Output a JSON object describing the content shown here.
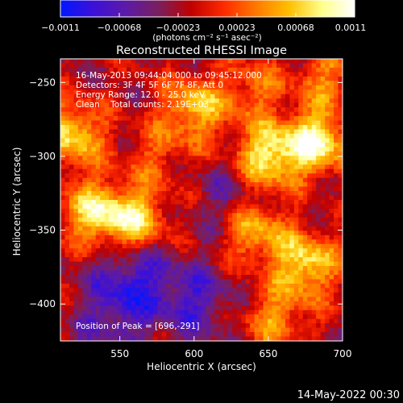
{
  "chart_data": {
    "type": "heatmap",
    "title": "Reconstructed RHESSI Image",
    "xlabel": "Heliocentric X (arcsec)",
    "ylabel": "Heliocentric Y (arcsec)",
    "xlim": [
      510,
      700
    ],
    "ylim": [
      -425,
      -234
    ],
    "x_ticks": [
      550,
      600,
      650,
      700
    ],
    "y_ticks": [
      -250,
      -300,
      -350,
      -400
    ],
    "x_tick_labels": [
      "550",
      "600",
      "650",
      "700"
    ],
    "y_tick_labels": [
      "−250",
      "−300",
      "−350",
      "−400"
    ],
    "colorbar": {
      "range": [
        -0.0011,
        0.0011
      ],
      "tick_labels": [
        "−0.0011",
        "−0.00068",
        "−0.00023",
        "0.00023",
        "0.00068",
        "0.0011"
      ],
      "units_label": "(photons cm⁻² s⁻¹ asec⁻²)",
      "colormap": [
        "#0018ff",
        "#3c10d8",
        "#5c1aa8",
        "#7a1f5e",
        "#c00000",
        "#ff2a00",
        "#ff7a00",
        "#ffc000",
        "#ffff8c",
        "#ffffff"
      ]
    },
    "annotations": {
      "time_range": "16-May-2013 09:44:04.000 to 09:45:12.000",
      "detectors": "Detectors: 3F 4F 5F 6F 7F 8F, Att 0",
      "energy_range": "Energy Range: 12.0 - 25.0 keV",
      "method_counts": "Clean    Total counts: 2.19E+03",
      "peak": "Position of Peak = [696,-291]"
    },
    "peak": {
      "x": 696,
      "y": -291
    },
    "hotspots": [
      {
        "x": 683,
        "y": -290,
        "amp": 1.0
      },
      {
        "x": 650,
        "y": -300,
        "amp": 0.95
      },
      {
        "x": 600,
        "y": -268,
        "amp": 0.75
      },
      {
        "x": 518,
        "y": -285,
        "amp": 0.85
      },
      {
        "x": 532,
        "y": -338,
        "amp": 0.8
      },
      {
        "x": 560,
        "y": -343,
        "amp": 0.85
      },
      {
        "x": 675,
        "y": -373,
        "amp": 0.9
      },
      {
        "x": 640,
        "y": -350,
        "amp": 0.75
      },
      {
        "x": 690,
        "y": -245,
        "amp": 0.5
      },
      {
        "x": 655,
        "y": -410,
        "amp": 0.55
      },
      {
        "x": 575,
        "y": -300,
        "amp": 0.35
      },
      {
        "x": 640,
        "y": -255,
        "amp": 0.45
      }
    ],
    "coldspots": [
      {
        "x": 560,
        "y": -382,
        "amp": 0.9
      },
      {
        "x": 600,
        "y": -398,
        "amp": 0.8
      },
      {
        "x": 625,
        "y": -330,
        "amp": 0.55
      },
      {
        "x": 545,
        "y": -410,
        "amp": 0.6
      }
    ]
  },
  "footer": {
    "date": "14-May-2022 00:30"
  }
}
